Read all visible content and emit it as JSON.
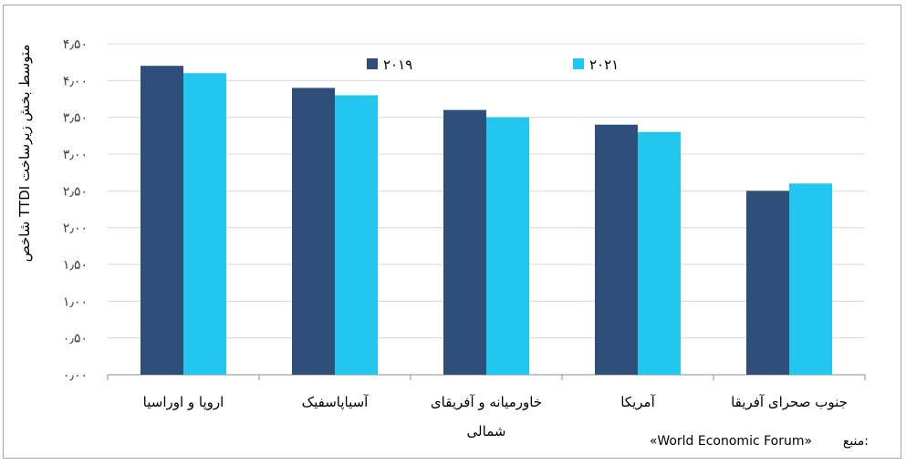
{
  "chart_data": {
    "type": "bar",
    "ylabel": "شاخص TTDI متوسط بخش زیرساخت",
    "ylim": [
      0,
      4.5
    ],
    "yticks": [
      "۰٫۰۰",
      "۰٫۵۰",
      "۱٫۰۰",
      "۱٫۵۰",
      "۲٫۰۰",
      "۲٫۵۰",
      "۳٫۰۰",
      "۳٫۵۰",
      "۴٫۰۰",
      "۴٫۵۰"
    ],
    "categories": [
      [
        "اروپا و اوراسیا"
      ],
      [
        "آسیاپاسفیک"
      ],
      [
        "خاورمیانه و آفریقای",
        "شمالی"
      ],
      [
        "آمریکا"
      ],
      [
        "جنوب صحرای آفریقا"
      ]
    ],
    "series": [
      {
        "name": "۲۰۱۹",
        "color": "#2e4f7a",
        "values": [
          4.2,
          3.9,
          3.6,
          3.4,
          2.5
        ]
      },
      {
        "name": "۲۰۲۱",
        "color": "#22c7ef",
        "values": [
          4.1,
          3.8,
          3.5,
          3.3,
          2.6
        ]
      }
    ],
    "legend": "top",
    "grid": true,
    "source_label": "منبع:",
    "source_text": "«World Economic Forum»"
  }
}
